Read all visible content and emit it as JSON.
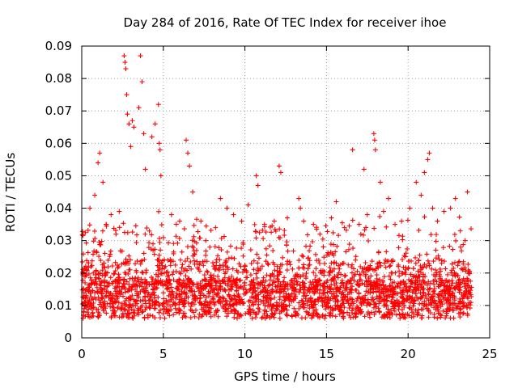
{
  "chart_data": {
    "type": "scatter",
    "title": "Day 284 of 2016, Rate Of TEC Index for receiver ihoe",
    "xlabel": "GPS time / hours",
    "ylabel": "ROTI / TECUs",
    "xlim": [
      0,
      25
    ],
    "ylim": [
      0,
      0.09
    ],
    "xticks": [
      0,
      5,
      10,
      15,
      20,
      25
    ],
    "yticks": [
      0,
      0.01,
      0.02,
      0.03,
      0.04,
      0.05,
      0.06,
      0.07,
      0.08,
      0.09
    ],
    "xtick_labels": [
      "0",
      "5",
      "10",
      "15",
      "20",
      "25"
    ],
    "ytick_labels": [
      "0",
      "0.01",
      "0.02",
      "0.03",
      "0.04",
      "0.05",
      "0.06",
      "0.07",
      "0.08",
      "0.09"
    ],
    "grid": true,
    "marker": "+",
    "marker_color": "#ff0000",
    "data_x_range": [
      0,
      23.9
    ],
    "series": [
      {
        "name": "ROTI",
        "points": [
          [
            0.3,
            0.021
          ],
          [
            0.5,
            0.04
          ],
          [
            0.8,
            0.044
          ],
          [
            1.0,
            0.054
          ],
          [
            1.1,
            0.057
          ],
          [
            1.3,
            0.048
          ],
          [
            1.5,
            0.035
          ],
          [
            1.8,
            0.038
          ],
          [
            2.1,
            0.032
          ],
          [
            2.3,
            0.039
          ],
          [
            2.6,
            0.087
          ],
          [
            2.65,
            0.085
          ],
          [
            2.7,
            0.083
          ],
          [
            2.75,
            0.075
          ],
          [
            2.8,
            0.069
          ],
          [
            2.9,
            0.066
          ],
          [
            3.0,
            0.059
          ],
          [
            3.1,
            0.067
          ],
          [
            3.2,
            0.065
          ],
          [
            3.5,
            0.071
          ],
          [
            3.6,
            0.087
          ],
          [
            3.7,
            0.079
          ],
          [
            3.8,
            0.063
          ],
          [
            3.9,
            0.052
          ],
          [
            4.3,
            0.062
          ],
          [
            4.5,
            0.066
          ],
          [
            4.7,
            0.072
          ],
          [
            4.75,
            0.06
          ],
          [
            4.8,
            0.058
          ],
          [
            4.85,
            0.05
          ],
          [
            5.5,
            0.038
          ],
          [
            6.0,
            0.036
          ],
          [
            6.4,
            0.061
          ],
          [
            6.5,
            0.057
          ],
          [
            6.6,
            0.053
          ],
          [
            6.8,
            0.045
          ],
          [
            7.3,
            0.036
          ],
          [
            7.6,
            0.03
          ],
          [
            8.2,
            0.034
          ],
          [
            8.5,
            0.043
          ],
          [
            8.9,
            0.04
          ],
          [
            9.3,
            0.038
          ],
          [
            9.8,
            0.036
          ],
          [
            10.2,
            0.041
          ],
          [
            10.7,
            0.05
          ],
          [
            10.8,
            0.047
          ],
          [
            11.2,
            0.035
          ],
          [
            11.8,
            0.036
          ],
          [
            12.1,
            0.053
          ],
          [
            12.2,
            0.051
          ],
          [
            12.6,
            0.037
          ],
          [
            13.3,
            0.043
          ],
          [
            13.4,
            0.04
          ],
          [
            13.6,
            0.036
          ],
          [
            14.2,
            0.035
          ],
          [
            14.6,
            0.032
          ],
          [
            15.3,
            0.037
          ],
          [
            15.6,
            0.042
          ],
          [
            16.1,
            0.034
          ],
          [
            16.6,
            0.058
          ],
          [
            17.0,
            0.035
          ],
          [
            17.3,
            0.052
          ],
          [
            17.5,
            0.038
          ],
          [
            17.9,
            0.063
          ],
          [
            17.95,
            0.061
          ],
          [
            18.0,
            0.058
          ],
          [
            18.3,
            0.048
          ],
          [
            18.5,
            0.039
          ],
          [
            18.8,
            0.043
          ],
          [
            19.2,
            0.035
          ],
          [
            19.6,
            0.036
          ],
          [
            20.1,
            0.04
          ],
          [
            20.5,
            0.048
          ],
          [
            20.8,
            0.044
          ],
          [
            21.0,
            0.051
          ],
          [
            21.2,
            0.055
          ],
          [
            21.3,
            0.057
          ],
          [
            21.5,
            0.04
          ],
          [
            21.8,
            0.036
          ],
          [
            22.2,
            0.039
          ],
          [
            22.6,
            0.04
          ],
          [
            22.9,
            0.043
          ],
          [
            23.2,
            0.033
          ],
          [
            23.5,
            0.03
          ]
        ]
      }
    ]
  }
}
